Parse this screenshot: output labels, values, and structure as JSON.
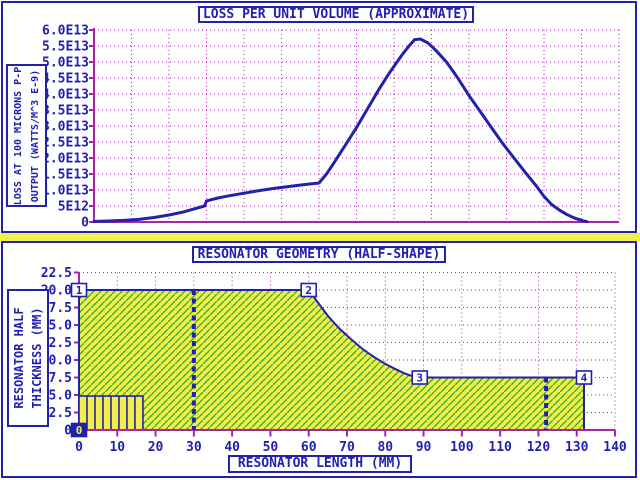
{
  "colors": {
    "blue": "#2121AD",
    "magenta": "#AA22AA",
    "yellow": "#F2EE4A",
    "hatch_green": "#2FA82F",
    "panel_bg": "#FFFFFF"
  },
  "chart_data": [
    {
      "type": "line",
      "title": "LOSS PER UNIT VOLUME (APPROXIMATE)",
      "xlabel": "",
      "ylabel": "LOSS AT 100 MICRONS P-P OUTPUT (WATTS/M^3 E-9)",
      "ylabel_lines": [
        "LOSS AT 100 MICRONS P-P",
        "OUTPUT (WATTS/M^3 E-9)"
      ],
      "xlim": [
        0,
        140
      ],
      "ylim": [
        0,
        60000000000000.0
      ],
      "grid": "dotted",
      "legend": "none",
      "x_tick_interval": 10,
      "x_tick_labels_shown": false,
      "y_ticks": [
        {
          "value": 60000000000000.0,
          "label": "6.0E13"
        },
        {
          "value": 55000000000000.0,
          "label": "5.5E13"
        },
        {
          "value": 50000000000000.0,
          "label": "5.0E13"
        },
        {
          "value": 45000000000000.0,
          "label": "4.5E13"
        },
        {
          "value": 40000000000000.0,
          "label": "4.0E13"
        },
        {
          "value": 35000000000000.0,
          "label": "3.5E13"
        },
        {
          "value": 30000000000000.0,
          "label": "3.0E13"
        },
        {
          "value": 25000000000000.0,
          "label": "2.5E13"
        },
        {
          "value": 20000000000000.0,
          "label": "2.0E13"
        },
        {
          "value": 15000000000000.0,
          "label": "1.5E13"
        },
        {
          "value": 10000000000000.0,
          "label": "1.0E13"
        },
        {
          "value": 5000000000000.0,
          "label": "5E12"
        },
        {
          "value": 0,
          "label": "0"
        }
      ],
      "series": [
        {
          "name": "loss-per-unit-volume",
          "color": "#2121AD",
          "points": [
            [
              0,
              200000000000.0
            ],
            [
              4,
              300000000000.0
            ],
            [
              8,
              500000000000.0
            ],
            [
              12,
              800000000000.0
            ],
            [
              16,
              1400000000000.0
            ],
            [
              20,
              2200000000000.0
            ],
            [
              24,
              3200000000000.0
            ],
            [
              27,
              4200000000000.0
            ],
            [
              29.5,
              5000000000000.0
            ],
            [
              30,
              6600000000000.0
            ],
            [
              33,
              7500000000000.0
            ],
            [
              36,
              8200000000000.0
            ],
            [
              40,
              9000000000000.0
            ],
            [
              44,
              9800000000000.0
            ],
            [
              48,
              10500000000000.0
            ],
            [
              52,
              11100000000000.0
            ],
            [
              56,
              11700000000000.0
            ],
            [
              60,
              12200000000000.0
            ],
            [
              62,
              15000000000000.0
            ],
            [
              64,
              18500000000000.0
            ],
            [
              67,
              24000000000000.0
            ],
            [
              70,
              29500000000000.0
            ],
            [
              73,
              35500000000000.0
            ],
            [
              76,
              41500000000000.0
            ],
            [
              79,
              47000000000000.0
            ],
            [
              82,
              52000000000000.0
            ],
            [
              84,
              55000000000000.0
            ],
            [
              85.5,
              57000000000000.0
            ],
            [
              87,
              57200000000000.0
            ],
            [
              89,
              56000000000000.0
            ],
            [
              91,
              53800000000000.0
            ],
            [
              94,
              50000000000000.0
            ],
            [
              97,
              45000000000000.0
            ],
            [
              100,
              39500000000000.0
            ],
            [
              103,
              34500000000000.0
            ],
            [
              106,
              29500000000000.0
            ],
            [
              109,
              24500000000000.0
            ],
            [
              112,
              20000000000000.0
            ],
            [
              115,
              15500000000000.0
            ],
            [
              118,
              11200000000000.0
            ],
            [
              120,
              8000000000000.0
            ],
            [
              122,
              5500000000000.0
            ],
            [
              124,
              3800000000000.0
            ],
            [
              126,
              2400000000000.0
            ],
            [
              128,
              1300000000000.0
            ],
            [
              130,
              500000000000.0
            ],
            [
              131.5,
              100000000000.0
            ]
          ]
        }
      ]
    },
    {
      "type": "area",
      "title": "RESONATOR GEOMETRY (HALF-SHAPE)",
      "xlabel": "RESONATOR LENGTH (MM)",
      "ylabel": "RESONATOR HALF THICKNESS (MM)",
      "ylabel_lines": [
        "RESONATOR HALF",
        "THICKNESS (MM)"
      ],
      "xlim": [
        0,
        140
      ],
      "ylim": [
        0,
        22.5
      ],
      "grid": "dotted",
      "legend": "none",
      "x_ticks": [
        {
          "value": 0,
          "label": "0"
        },
        {
          "value": 10,
          "label": "10"
        },
        {
          "value": 20,
          "label": "20"
        },
        {
          "value": 30,
          "label": "30"
        },
        {
          "value": 40,
          "label": "40"
        },
        {
          "value": 50,
          "label": "50"
        },
        {
          "value": 60,
          "label": "60"
        },
        {
          "value": 70,
          "label": "70"
        },
        {
          "value": 80,
          "label": "80"
        },
        {
          "value": 90,
          "label": "90"
        },
        {
          "value": 100,
          "label": "100"
        },
        {
          "value": 110,
          "label": "110"
        },
        {
          "value": 120,
          "label": "120"
        },
        {
          "value": 130,
          "label": "130"
        },
        {
          "value": 140,
          "label": "140"
        }
      ],
      "y_ticks": [
        {
          "value": 22.5,
          "label": "22.5"
        },
        {
          "value": 20.0,
          "label": "20.0"
        },
        {
          "value": 17.5,
          "label": "17.5"
        },
        {
          "value": 15.0,
          "label": "15.0"
        },
        {
          "value": 12.5,
          "label": "12.5"
        },
        {
          "value": 10.0,
          "label": "10.0"
        },
        {
          "value": 7.5,
          "label": "7.5"
        },
        {
          "value": 5.0,
          "label": "5.0"
        },
        {
          "value": 2.5,
          "label": "2.5"
        },
        {
          "value": 0,
          "label": "0"
        }
      ],
      "fill_color": "#F2EE4A",
      "hatch_color": "#2FA82F",
      "outline_color": "#2121AD",
      "outline_points": [
        [
          0,
          0
        ],
        [
          0,
          20
        ],
        [
          60,
          20
        ],
        [
          62,
          18.5
        ],
        [
          65,
          16.3
        ],
        [
          68,
          14.5
        ],
        [
          71,
          13.0
        ],
        [
          74,
          11.6
        ],
        [
          77,
          10.45
        ],
        [
          80,
          9.45
        ],
        [
          83,
          8.6
        ],
        [
          85,
          8.1
        ],
        [
          87,
          7.7
        ],
        [
          88.5,
          7.5
        ],
        [
          131.9,
          7.5
        ],
        [
          131.9,
          0
        ]
      ],
      "point_markers": [
        {
          "label": "0",
          "x": 0,
          "y": 0,
          "inverted": true
        },
        {
          "label": "1",
          "x": 0,
          "y": 20,
          "inverted": false
        },
        {
          "label": "2",
          "x": 60,
          "y": 20,
          "inverted": false
        },
        {
          "label": "3",
          "x": 89,
          "y": 7.5,
          "inverted": false
        },
        {
          "label": "4",
          "x": 131.9,
          "y": 7.5,
          "inverted": false
        }
      ],
      "dashed_vlines": [
        {
          "x": 30,
          "from_y": 0,
          "to_y": 20
        },
        {
          "x": 122,
          "from_y": 0,
          "to_y": 7.5
        }
      ],
      "stack_region": {
        "x_from": 0,
        "x_to": 16.7,
        "height": 4.85,
        "cells": 8
      }
    }
  ]
}
